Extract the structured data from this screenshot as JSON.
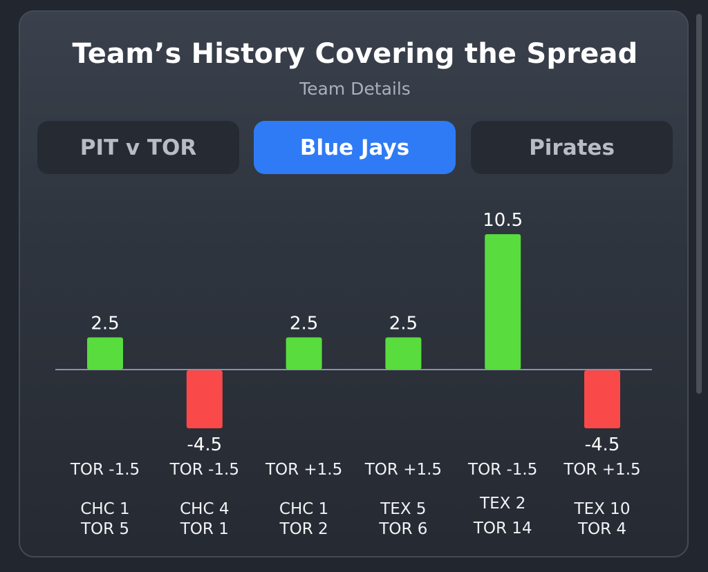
{
  "card": {
    "title": "Team’s History Covering the Spread",
    "subtitle": "Team Details"
  },
  "tabs": [
    {
      "label": "PIT v TOR",
      "active": false
    },
    {
      "label": "Blue Jays",
      "active": true
    },
    {
      "label": "Pirates",
      "active": false
    }
  ],
  "colors": {
    "positive": "#58dc3e",
    "negative": "#fa4949",
    "baseline": "#8a93a6",
    "active_tab": "#2f7bf5"
  },
  "chart_data": {
    "type": "bar",
    "categories": [
      "TOR -1.5",
      "TOR -1.5",
      "TOR +1.5",
      "TOR +1.5",
      "TOR -1.5",
      "TOR +1.5"
    ],
    "values": [
      2.5,
      -4.5,
      2.5,
      2.5,
      10.5,
      -4.5
    ],
    "value_labels": [
      "2.5",
      "-4.5",
      "2.5",
      "2.5",
      "10.5",
      "-4.5"
    ],
    "scores": [
      [
        "CHC 1",
        "TOR 5"
      ],
      [
        "CHC 4",
        "TOR 1"
      ],
      [
        "CHC 1",
        "TOR 2"
      ],
      [
        "TEX 5",
        "TOR 6"
      ],
      [
        "TEX 2",
        "TOR 14"
      ],
      [
        "TEX 10",
        "TOR 4"
      ]
    ],
    "title": "",
    "xlabel": "",
    "ylabel": "",
    "grid": false
  }
}
